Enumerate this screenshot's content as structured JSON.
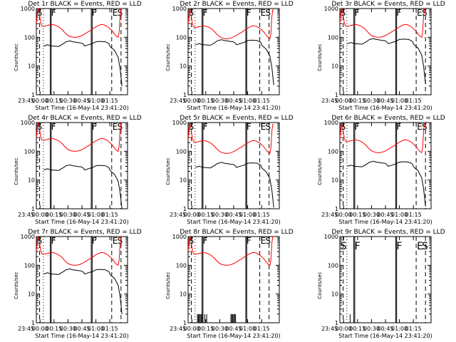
{
  "figure": {
    "xlabel": "Start Time (16-May-14 23:41:20)",
    "ylabel": "Counts/sec",
    "x_ticks": [
      "23:45",
      "00:00",
      "00:15",
      "00:30",
      "00:45",
      "01:00",
      "01:15"
    ],
    "y_ticks": [
      "1",
      "10",
      "100",
      "1000"
    ],
    "colors": {
      "events": "#000000",
      "lld": "#ff0000"
    },
    "markers": {
      "S": "S",
      "F": "F",
      "E": "E"
    }
  },
  "chart_data": [
    {
      "type": "line",
      "title": "Det 1r BLACK = Events, RED = LLD",
      "panel": "det1r",
      "ylim": [
        1,
        1000
      ],
      "xlim_minutes": [
        -4,
        94
      ],
      "series": [
        {
          "name": "Events",
          "x": [
            4,
            8,
            10,
            12,
            20,
            25,
            28,
            30,
            32,
            35,
            38,
            40,
            42,
            44,
            46,
            48,
            52,
            56,
            58,
            60,
            65,
            70,
            72,
            74,
            75,
            76,
            78,
            80,
            84,
            86,
            88
          ],
          "values": [
            50,
            55,
            52,
            50,
            48,
            60,
            70,
            72,
            75,
            70,
            68,
            66,
            65,
            64,
            60,
            50,
            55,
            60,
            65,
            70,
            72,
            70,
            65,
            60,
            50,
            45,
            40,
            35,
            20,
            8,
            2
          ]
        },
        {
          "name": "LLD",
          "x": [
            -4,
            -3,
            -2,
            -1,
            0,
            1,
            2,
            4,
            6,
            8,
            10,
            12,
            15,
            18,
            21,
            24,
            27,
            30,
            33,
            36,
            39,
            42,
            45,
            48,
            51,
            54,
            57,
            60,
            63,
            66,
            69,
            72,
            75,
            78,
            80,
            82,
            84,
            85,
            86,
            87,
            88
          ],
          "values": [
            300,
            700,
            1000,
            800,
            450,
            300,
            250,
            240,
            250,
            260,
            270,
            280,
            270,
            250,
            220,
            180,
            140,
            115,
            105,
            100,
            100,
            105,
            115,
            130,
            150,
            170,
            200,
            230,
            260,
            280,
            270,
            240,
            200,
            160,
            130,
            110,
            100,
            150,
            600,
            1000,
            1000
          ]
        }
      ]
    },
    {
      "type": "line",
      "title": "Det 2r BLACK = Events, RED = LLD",
      "panel": "det2r",
      "ylim": [
        1,
        1000
      ]
    },
    {
      "type": "line",
      "title": "Det 3r BLACK = Events, RED = LLD",
      "panel": "det3r",
      "ylim": [
        1,
        1000
      ]
    },
    {
      "type": "line",
      "title": "Det 4r BLACK = Events, RED = LLD",
      "panel": "det4r",
      "ylim": [
        1,
        1000
      ]
    },
    {
      "type": "line",
      "title": "Det 5r BLACK = Events, RED = LLD",
      "panel": "det5r",
      "ylim": [
        1,
        1000
      ]
    },
    {
      "type": "line",
      "title": "Det 6r BLACK = Events, RED = LLD",
      "panel": "det6r",
      "ylim": [
        1,
        1000
      ]
    },
    {
      "type": "line",
      "title": "Det 7r BLACK = Events, RED = LLD",
      "panel": "det7r",
      "ylim": [
        1,
        1000
      ]
    },
    {
      "type": "line",
      "title": "Det 8r BLACK = Events, RED = LLD",
      "panel": "det8r",
      "ylim": [
        1,
        1000
      ]
    },
    {
      "type": "line",
      "title": "Det 9r BLACK = Events, RED = LLD",
      "panel": "det9r",
      "ylim": [
        1,
        1000
      ]
    }
  ]
}
